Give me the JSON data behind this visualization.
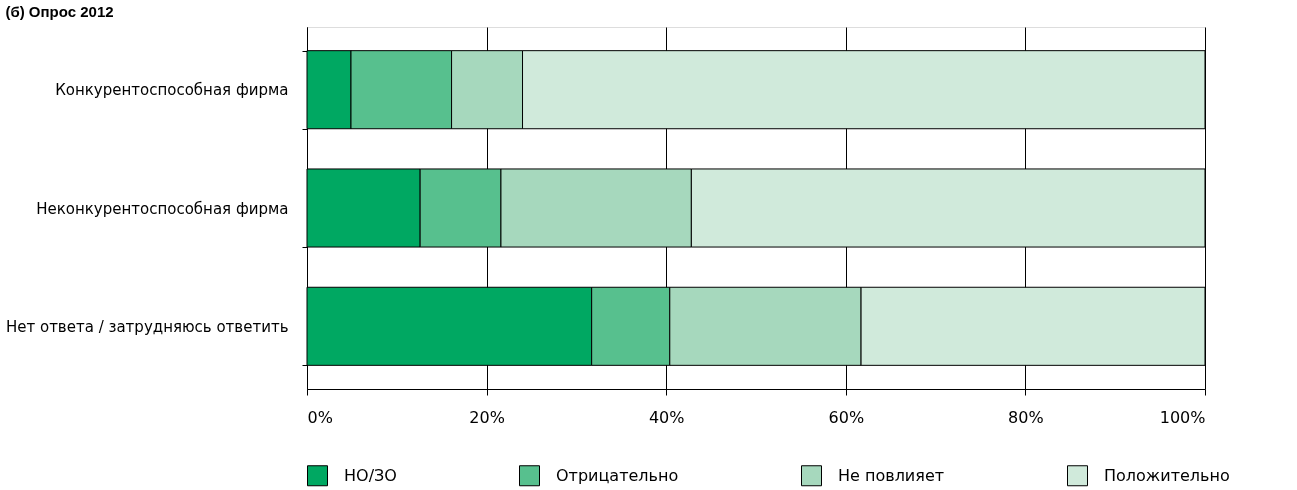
{
  "chart_data": {
    "type": "bar",
    "orientation": "horizontal",
    "stacked": true,
    "title": "(б) Опрос 2012",
    "categories": [
      "Конкурентоспособная фирма",
      "Неконкурентоспособная фирма",
      "Нет ответа / затрудняюсь ответить"
    ],
    "series": [
      {
        "name": "НО/ЗО",
        "color": "#00a862",
        "values": [
          4.9,
          12.6,
          31.7
        ]
      },
      {
        "name": "Отрицательно",
        "color": "#57c08e",
        "values": [
          11.2,
          9.0,
          8.7
        ]
      },
      {
        "name": "Не повлияет",
        "color": "#a6d8bd",
        "values": [
          7.9,
          21.2,
          21.3
        ]
      },
      {
        "name": "Положительно",
        "color": "#d0eadb",
        "values": [
          76.0,
          57.2,
          38.3
        ]
      }
    ],
    "xlim": [
      0,
      100
    ],
    "xticks": [
      {
        "value": 0,
        "label": "0%"
      },
      {
        "value": 20,
        "label": "20%"
      },
      {
        "value": 40,
        "label": "40%"
      },
      {
        "value": 60,
        "label": "60%"
      },
      {
        "value": 80,
        "label": "80%"
      },
      {
        "value": 100,
        "label": "100%"
      }
    ],
    "grid": "x",
    "legend": "bottom"
  }
}
